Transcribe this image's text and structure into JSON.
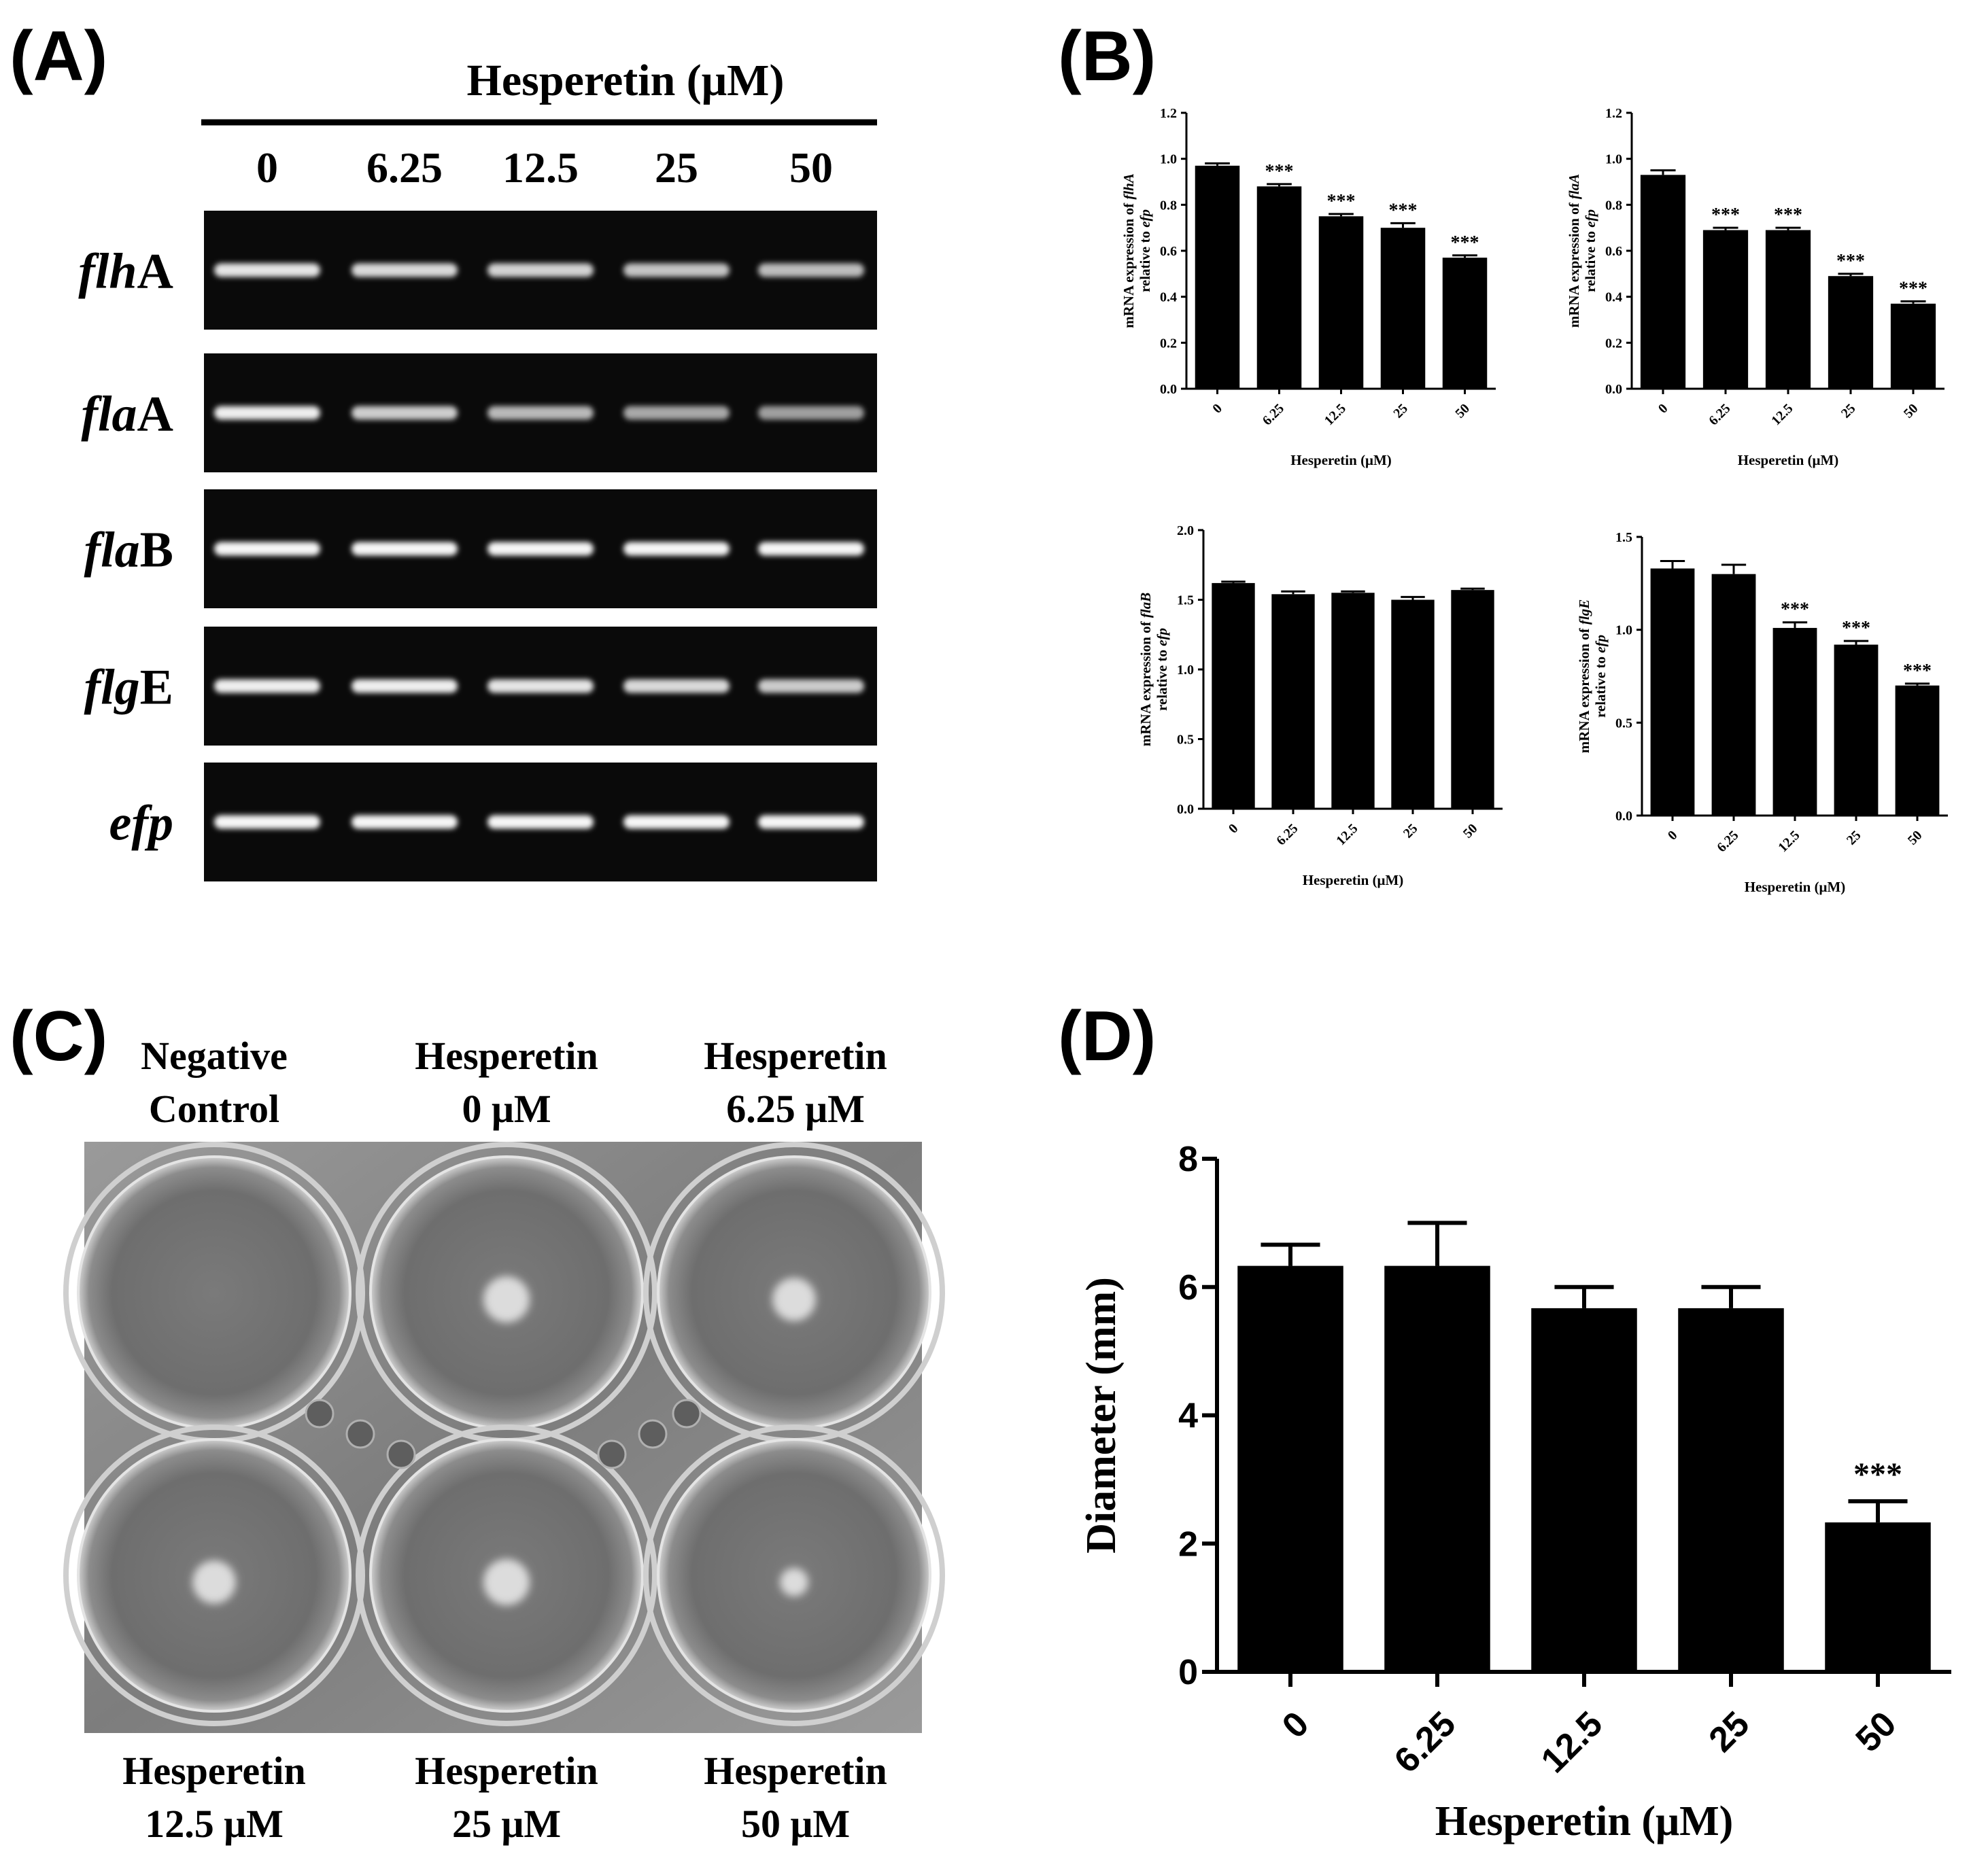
{
  "panel_labels": {
    "A": "(A)",
    "B": "(B)",
    "C": "(C)",
    "D": "(D)"
  },
  "gel": {
    "header": "Hesperetin (μM)",
    "lanes": [
      "0",
      "6.25",
      "12.5",
      "25",
      "50"
    ],
    "genes": [
      {
        "italic": "flh",
        "plain": "A",
        "intensity": [
          0.85,
          0.78,
          0.75,
          0.66,
          0.62
        ]
      },
      {
        "italic": "fla",
        "plain": "A",
        "intensity": [
          0.9,
          0.72,
          0.6,
          0.5,
          0.45
        ]
      },
      {
        "italic": "fla",
        "plain": "B",
        "intensity": [
          0.95,
          0.95,
          0.95,
          0.95,
          0.95
        ]
      },
      {
        "italic": "flg",
        "plain": "E",
        "intensity": [
          0.9,
          0.9,
          0.85,
          0.78,
          0.7
        ]
      },
      {
        "italic": "efp",
        "plain": "",
        "intensity": [
          0.95,
          0.95,
          0.95,
          0.95,
          0.95
        ]
      }
    ]
  },
  "plate": {
    "top_labels": [
      [
        "Negative",
        "Control"
      ],
      [
        "Hesperetin",
        "0 μM"
      ],
      [
        "Hesperetin",
        "6.25 μM"
      ]
    ],
    "bottom_labels": [
      [
        "Hesperetin",
        "12.5 μM"
      ],
      [
        "Hesperetin",
        "25 μM"
      ],
      [
        "Hesperetin",
        "50 μM"
      ]
    ],
    "colony_level": [
      0,
      1,
      0.9,
      0.9,
      1,
      0.4
    ]
  },
  "chart_data": [
    {
      "panel": "B",
      "type": "bar",
      "categories": [
        "0",
        "6.25",
        "12.5",
        "25",
        "50"
      ],
      "values": [
        0.97,
        0.88,
        0.75,
        0.7,
        0.57
      ],
      "errors": [
        0.01,
        0.01,
        0.01,
        0.02,
        0.01
      ],
      "significance": [
        "",
        "***",
        "***",
        "***",
        "***"
      ],
      "ylabel_line1_prefix": "mRNA expression of ",
      "ylabel_line1_gene": "flhA",
      "ylabel_line2_prefix": "relative to ",
      "ylabel_line2_gene": "efp",
      "xlabel": "Hesperetin (μM)",
      "ylim": [
        0,
        1.2
      ],
      "yticks": [
        "0.0",
        "0.2",
        "0.4",
        "0.6",
        "0.8",
        "1.0",
        "1.2"
      ],
      "ytick_values": [
        0,
        0.2,
        0.4,
        0.6,
        0.8,
        1.0,
        1.2
      ]
    },
    {
      "panel": "B",
      "type": "bar",
      "categories": [
        "0",
        "6.25",
        "12.5",
        "25",
        "50"
      ],
      "values": [
        0.93,
        0.69,
        0.69,
        0.49,
        0.37
      ],
      "errors": [
        0.02,
        0.01,
        0.01,
        0.01,
        0.01
      ],
      "significance": [
        "",
        "***",
        "***",
        "***",
        "***"
      ],
      "ylabel_line1_prefix": "mRNA expression of ",
      "ylabel_line1_gene": "flaA",
      "ylabel_line2_prefix": "relative to ",
      "ylabel_line2_gene": "efp",
      "xlabel": "Hesperetin (μM)",
      "ylim": [
        0,
        1.2
      ],
      "yticks": [
        "0.0",
        "0.2",
        "0.4",
        "0.6",
        "0.8",
        "1.0",
        "1.2"
      ],
      "ytick_values": [
        0,
        0.2,
        0.4,
        0.6,
        0.8,
        1.0,
        1.2
      ]
    },
    {
      "panel": "B",
      "type": "bar",
      "categories": [
        "0",
        "6.25",
        "12.5",
        "25",
        "50"
      ],
      "values": [
        1.62,
        1.54,
        1.55,
        1.5,
        1.57
      ],
      "errors": [
        0.01,
        0.02,
        0.01,
        0.02,
        0.01
      ],
      "significance": [
        "",
        "",
        "",
        "",
        ""
      ],
      "ylabel_line1_prefix": "mRNA expression of ",
      "ylabel_line1_gene": "flaB",
      "ylabel_line2_prefix": "relative to ",
      "ylabel_line2_gene": "efp",
      "xlabel": "Hesperetin (μM)",
      "ylim": [
        0,
        2.0
      ],
      "yticks": [
        "0.0",
        "0.5",
        "1.0",
        "1.5",
        "2.0"
      ],
      "ytick_values": [
        0,
        0.5,
        1.0,
        1.5,
        2.0
      ]
    },
    {
      "panel": "B",
      "type": "bar",
      "categories": [
        "0",
        "6.25",
        "12.5",
        "25",
        "50"
      ],
      "values": [
        1.33,
        1.3,
        1.01,
        0.92,
        0.7
      ],
      "errors": [
        0.04,
        0.05,
        0.03,
        0.02,
        0.01
      ],
      "significance": [
        "",
        "",
        "***",
        "***",
        "***"
      ],
      "ylabel_line1_prefix": "mRNA expression of ",
      "ylabel_line1_gene": "flgE",
      "ylabel_line2_prefix": "relative to ",
      "ylabel_line2_gene": "efp",
      "xlabel": "Hesperetin (μM)",
      "ylim": [
        0,
        1.5
      ],
      "yticks": [
        "0.0",
        "0.5",
        "1.0",
        "1.5"
      ],
      "ytick_values": [
        0,
        0.5,
        1.0,
        1.5
      ]
    },
    {
      "panel": "D",
      "type": "bar",
      "categories": [
        "0",
        "6.25",
        "12.5",
        "25",
        "50"
      ],
      "values": [
        6.33,
        6.33,
        5.67,
        5.67,
        2.33
      ],
      "errors": [
        0.33,
        0.67,
        0.33,
        0.33,
        0.33
      ],
      "significance": [
        "",
        "",
        "",
        "",
        "***"
      ],
      "ylabel": "Diameter (mm)",
      "xlabel": "Hesperetin (μM)",
      "ylim": [
        0,
        8
      ],
      "yticks": [
        "0",
        "2",
        "4",
        "6",
        "8"
      ],
      "ytick_values": [
        0,
        2,
        4,
        6,
        8
      ]
    }
  ]
}
